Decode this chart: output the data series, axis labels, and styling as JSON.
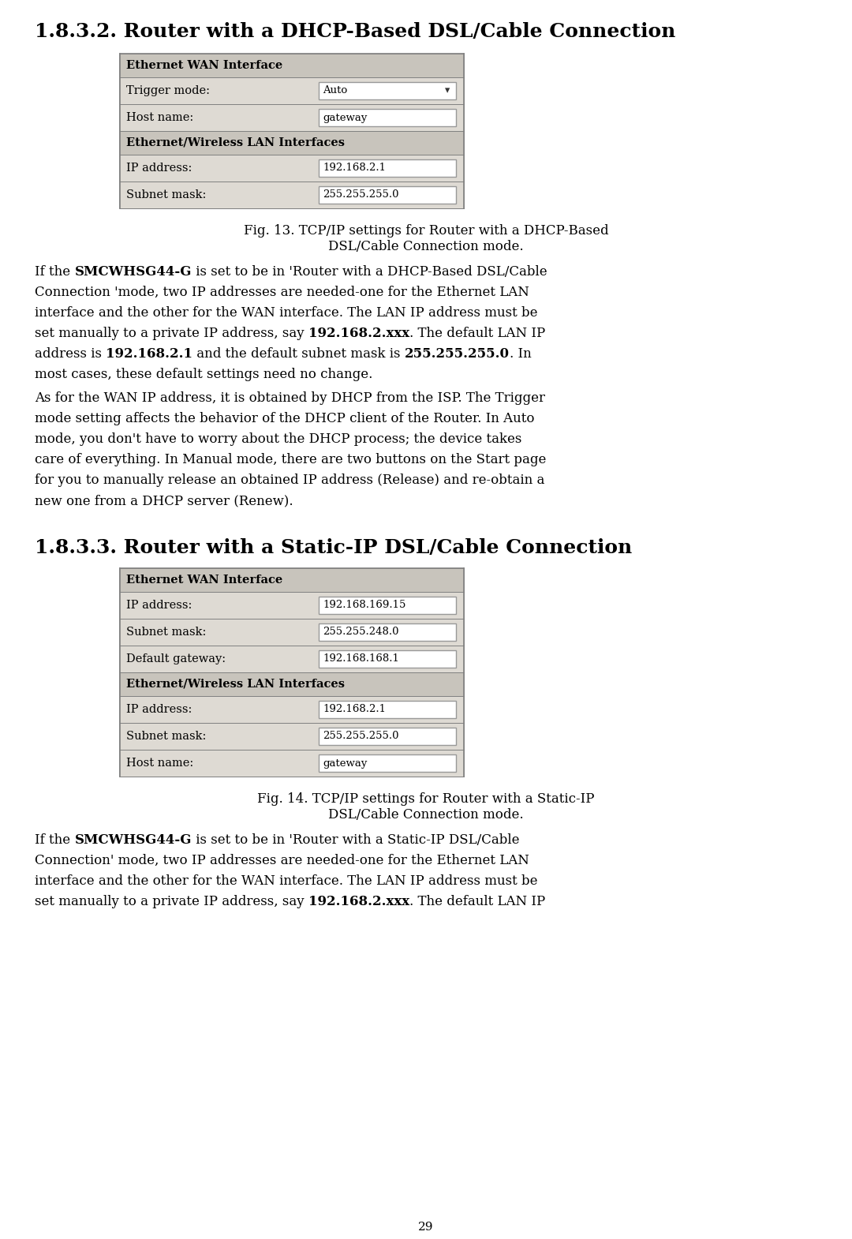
{
  "bg_color": "#ffffff",
  "page_number": "29",
  "section1_title": "1.8.3.2. Router with a DHCP-Based DSL/Cable Connection",
  "section2_title": "1.8.3.3. Router with a Static-IP DSL/Cable Connection",
  "table1_header1": "Ethernet WAN Interface",
  "table1_header2": "Ethernet/Wireless LAN Interfaces",
  "table2_header1": "Ethernet WAN Interface",
  "table2_header2": "Ethernet/Wireless LAN Interfaces",
  "fig13_line1": "Fig. 13. TCP/IP settings for Router with a DHCP-Based",
  "fig13_line2": "DSL/Cable Connection mode.",
  "fig14_line1": "Fig. 14. TCP/IP settings for Router with a Static-IP",
  "fig14_line2": "DSL/Cable Connection mode.",
  "para1_line1_a": "If the ",
  "para1_line1_b": "SMCWHSG44-G",
  "para1_line1_c": " is set to be in 'Router with a DHCP-Based DSL/Cable",
  "para1_line2": "Connection 'mode, two IP addresses are needed-one for the Ethernet LAN",
  "para1_line3": "interface and the other for the WAN interface. The LAN IP address must be",
  "para1_line4_a": "set manually to a private IP address, say ",
  "para1_line4_b": "192.168.2.xxx",
  "para1_line4_c": ". The default LAN IP",
  "para1_line5_a": "address is ",
  "para1_line5_b": "192.168.2.1",
  "para1_line5_c": " and the default subnet mask is ",
  "para1_line5_d": "255.255.255.0",
  "para1_line5_e": ". In",
  "para1_line6": "most cases, these default settings need no change.",
  "para2_line1": "As for the WAN IP address, it is obtained by DHCP from the ISP. The Trigger",
  "para2_line2": "mode setting affects the behavior of the DHCP client of the Router. In Auto",
  "para2_line3": "mode, you don't have to worry about the DHCP process; the device takes",
  "para2_line4": "care of everything. In Manual mode, there are two buttons on the Start page",
  "para2_line5": "for you to manually release an obtained IP address (Release) and re-obtain a",
  "para2_line6": "new one from a DHCP server (Renew).",
  "para3_line1_a": "If the ",
  "para3_line1_b": "SMCWHSG44-G",
  "para3_line1_c": " is set to be in 'Router with a Static-IP DSL/Cable",
  "para3_line2": "Connection' mode, two IP addresses are needed-one for the Ethernet LAN",
  "para3_line3": "interface and the other for the WAN interface. The LAN IP address must be",
  "para3_line4_a": "set manually to a private IP address, say ",
  "para3_line4_b": "192.168.2.xxx",
  "para3_line4_c": ". The default LAN IP"
}
